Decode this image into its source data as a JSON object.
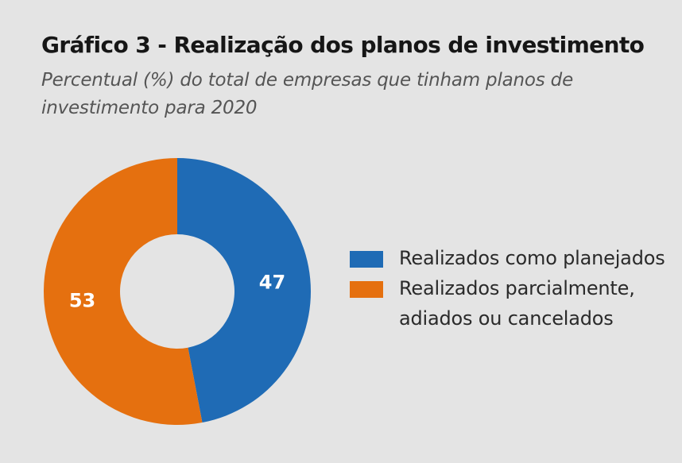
{
  "title": "Gráfico 3 - Realização dos planos de investimento",
  "subtitle": "Percentual (%) do total de empresas que tinham planos de investimento para 2020",
  "chart_data": {
    "type": "pie",
    "variant": "donut",
    "title": "Gráfico 3 - Realização dos planos de investimento",
    "subtitle": "Percentual (%) do total de empresas que tinham planos de investimento para 2020",
    "unit": "%",
    "legend_position": "right",
    "categories": [
      "Realizados como planejados",
      "Realizados parcialmente, adiados ou cancelados"
    ],
    "values": [
      47,
      53
    ],
    "labels": [
      "47",
      "53"
    ],
    "colors": [
      "#1f6bb5",
      "#e5700f"
    ]
  },
  "legend": [
    {
      "label": "Realizados como planejados",
      "color": "#1f6bb5"
    },
    {
      "label": "Realizados parcialmente, adiados ou cancelados",
      "color": "#e5700f"
    }
  ],
  "colors": {
    "background": "#e4e4e4"
  }
}
